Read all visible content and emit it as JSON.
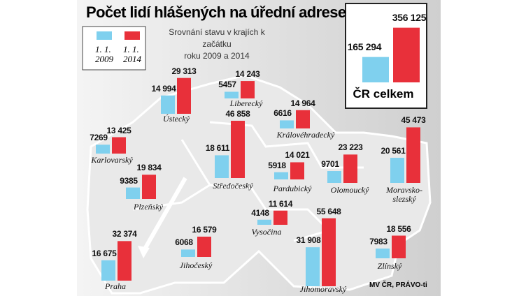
{
  "chart_data": {
    "type": "bar",
    "title": "Počet lidí hlášených na úřední adrese",
    "subtitle": "Srovnání stavu v krajích k začátku\nroku 2009 a 2014",
    "source": "MV ČR, PRÁVO-ti",
    "categories": [
      "Ústecký",
      "Liberecký",
      "Karlovarský",
      "Královéhradecký",
      "Plzeňský",
      "Středočeský",
      "Pardubický",
      "Olomoucký",
      "Moravsko-\nslezský",
      "Vysočina",
      "Praha",
      "Jihočeský",
      "Jihomoravský",
      "Zlínský"
    ],
    "series": [
      {
        "name": "1. 1.\n2009",
        "color": "#7fd0ee",
        "values": [
          14994,
          5457,
          7269,
          6616,
          9385,
          18611,
          5918,
          9701,
          20561,
          4148,
          16675,
          6068,
          31908,
          7983
        ],
        "value_labels": [
          "14 994",
          "5457",
          "7269",
          "6616",
          "9385",
          "18 611",
          "5918",
          "9701",
          "20 561",
          "4148",
          "16 675",
          "6068",
          "31 908",
          "7983"
        ]
      },
      {
        "name": "1. 1.\n2014",
        "color": "#e8303a",
        "values": [
          29313,
          14243,
          13425,
          14964,
          19834,
          46858,
          14021,
          23223,
          45473,
          11614,
          32374,
          16579,
          55648,
          18556
        ],
        "value_labels": [
          "29 313",
          "14 243",
          "13 425",
          "14 964",
          "19 834",
          "46 858",
          "14 021",
          "23 223",
          "45 473",
          "11 614",
          "32 374",
          "16 579",
          "55 648",
          "18 556"
        ]
      }
    ],
    "total": {
      "label": "ČR celkem",
      "values": [
        165294,
        356125
      ],
      "value_labels": [
        "165 294",
        "356 125"
      ]
    }
  }
}
